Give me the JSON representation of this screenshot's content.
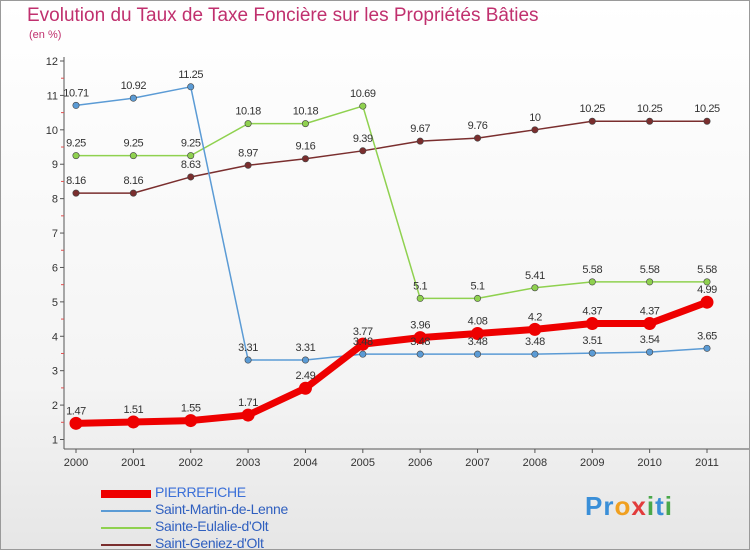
{
  "title": "Evolution du Taux de Taxe Foncière sur les Propriétés Bâties",
  "unit_label": "(en %)",
  "logo": {
    "text": "Proxiti",
    "letters": [
      "P",
      "r",
      "o",
      "x",
      "i",
      "t",
      "i"
    ],
    "colors": [
      "#3a8fd8",
      "#3a8fd8",
      "#f0a020",
      "#e23c3c",
      "#4aa84a",
      "#3a8fd8",
      "#4aa84a"
    ]
  },
  "chart_data": {
    "type": "line",
    "title": "Evolution du Taux de Taxe Foncière sur les Propriétés Bâties",
    "ylabel": "(en %)",
    "xlabel": "",
    "x": [
      "2000",
      "2001",
      "2002",
      "2003",
      "2004",
      "2005",
      "2006",
      "2007",
      "2008",
      "2009",
      "2010",
      "2011"
    ],
    "ylim": [
      1,
      12
    ],
    "yticks": [
      "1",
      "2",
      "3",
      "4",
      "5",
      "6",
      "7",
      "8",
      "9",
      "10",
      "11",
      "12"
    ],
    "grid": false,
    "legend_position": "bottom-left",
    "series": [
      {
        "name": "PIERREFICHE",
        "color": "#ee0000",
        "values": [
          1.47,
          1.51,
          1.55,
          1.71,
          2.49,
          3.77,
          3.96,
          4.08,
          4.2,
          4.37,
          4.37,
          4.99
        ],
        "labels": [
          "1.47",
          "1.51",
          "1.55",
          "1.71",
          "2.49",
          "3.77",
          "3.96",
          "4.08",
          "4.2",
          "4.37",
          "4.37",
          "4.99"
        ]
      },
      {
        "name": "Saint-Martin-de-Lenne",
        "color": "#5b9bd5",
        "values": [
          10.71,
          10.92,
          11.25,
          3.31,
          3.31,
          3.48,
          3.48,
          3.48,
          3.48,
          3.51,
          3.54,
          3.65
        ],
        "labels": [
          "10.71",
          "10.92",
          "11.25",
          "3.31",
          "3.31",
          "3.48",
          "3.48",
          "3.48",
          "3.48",
          "3.51",
          "3.54",
          "3.65"
        ]
      },
      {
        "name": "Sainte-Eulalie-d'Olt",
        "color": "#8fd14f",
        "values": [
          9.25,
          9.25,
          9.25,
          10.18,
          10.18,
          10.69,
          5.1,
          5.1,
          5.41,
          5.58,
          5.58,
          5.58
        ],
        "labels": [
          "9.25",
          "9.25",
          "9.25",
          "10.18",
          "10.18",
          "10.69",
          "5.1",
          "5.1",
          "5.41",
          "5.58",
          "5.58",
          "5.58"
        ]
      },
      {
        "name": "Saint-Geniez-d'Olt",
        "color": "#7a2e2e",
        "values": [
          8.16,
          8.16,
          8.63,
          8.97,
          9.16,
          9.39,
          9.67,
          9.76,
          10,
          10.25,
          10.25,
          10.25
        ],
        "labels": [
          "8.16",
          "8.16",
          "8.63",
          "8.97",
          "9.16",
          "9.39",
          "9.67",
          "9.76",
          "10",
          "10.25",
          "10.25",
          "10.25"
        ]
      }
    ]
  }
}
